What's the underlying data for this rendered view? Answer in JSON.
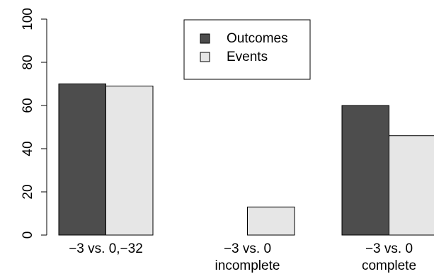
{
  "chart_data": {
    "type": "bar",
    "title": "",
    "xlabel": "",
    "ylabel": "",
    "ylim": [
      0,
      100
    ],
    "yticks": [
      0,
      20,
      40,
      60,
      80,
      100
    ],
    "grid": false,
    "legend_position": "top-center",
    "categories": [
      [
        "−3 vs. 0,−32"
      ],
      [
        "−3 vs. 0",
        "incomplete"
      ],
      [
        "−3 vs. 0",
        "complete"
      ]
    ],
    "series": [
      {
        "name": "Outcomes",
        "color": "#4d4d4d",
        "values": [
          70,
          0,
          60
        ]
      },
      {
        "name": "Events",
        "color": "#e6e6e6",
        "values": [
          69,
          13,
          46
        ]
      }
    ]
  }
}
